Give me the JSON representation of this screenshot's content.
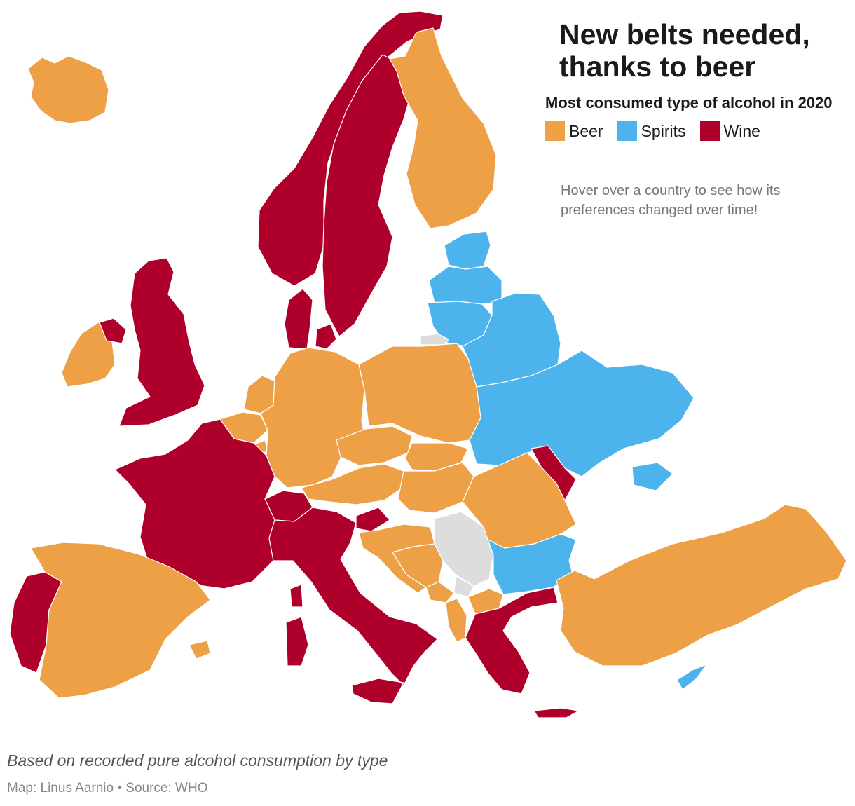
{
  "title": "New belts needed, thanks to beer",
  "legend": {
    "title": "Most consumed type of alcohol in 2020",
    "items": [
      {
        "key": "beer",
        "label": "Beer",
        "color": "#EDA045"
      },
      {
        "key": "spirits",
        "label": "Spirits",
        "color": "#4CB3EC"
      },
      {
        "key": "wine",
        "label": "Wine",
        "color": "#AE002A"
      }
    ]
  },
  "no_data_color": "#DDDDDD",
  "hint": "Hover over a country to see how its preferences changed over time!",
  "note": "Based on recorded pure alcohol consumption by type",
  "credit": "Map: Linus Aarnio • Source: WHO",
  "countries": [
    {
      "name": "Iceland",
      "type": "beer"
    },
    {
      "name": "Ireland",
      "type": "beer"
    },
    {
      "name": "United Kingdom",
      "type": "wine"
    },
    {
      "name": "Norway",
      "type": "wine"
    },
    {
      "name": "Sweden",
      "type": "wine"
    },
    {
      "name": "Denmark",
      "type": "wine"
    },
    {
      "name": "Finland",
      "type": "beer"
    },
    {
      "name": "Estonia",
      "type": "spirits"
    },
    {
      "name": "Latvia",
      "type": "spirits"
    },
    {
      "name": "Lithuania",
      "type": "spirits"
    },
    {
      "name": "Belarus",
      "type": "spirits"
    },
    {
      "name": "Russia (Kaliningrad)",
      "type": "none"
    },
    {
      "name": "Ukraine",
      "type": "spirits"
    },
    {
      "name": "Moldova",
      "type": "wine"
    },
    {
      "name": "Netherlands",
      "type": "beer"
    },
    {
      "name": "Belgium",
      "type": "beer"
    },
    {
      "name": "Luxembourg",
      "type": "beer"
    },
    {
      "name": "Germany",
      "type": "beer"
    },
    {
      "name": "Poland",
      "type": "beer"
    },
    {
      "name": "Czechia",
      "type": "beer"
    },
    {
      "name": "Slovakia",
      "type": "beer"
    },
    {
      "name": "Austria",
      "type": "beer"
    },
    {
      "name": "Hungary",
      "type": "beer"
    },
    {
      "name": "Switzerland",
      "type": "wine"
    },
    {
      "name": "France",
      "type": "wine"
    },
    {
      "name": "Portugal",
      "type": "wine"
    },
    {
      "name": "Spain",
      "type": "beer"
    },
    {
      "name": "Italy",
      "type": "wine"
    },
    {
      "name": "Slovenia",
      "type": "wine"
    },
    {
      "name": "Croatia",
      "type": "beer"
    },
    {
      "name": "Bosnia and Herzegovina",
      "type": "beer"
    },
    {
      "name": "Serbia",
      "type": "none"
    },
    {
      "name": "Kosovo",
      "type": "none"
    },
    {
      "name": "Montenegro",
      "type": "beer"
    },
    {
      "name": "Albania",
      "type": "beer"
    },
    {
      "name": "North Macedonia",
      "type": "beer"
    },
    {
      "name": "Romania",
      "type": "beer"
    },
    {
      "name": "Bulgaria",
      "type": "spirits"
    },
    {
      "name": "Greece",
      "type": "wine"
    },
    {
      "name": "Turkey",
      "type": "beer"
    },
    {
      "name": "Cyprus",
      "type": "spirits"
    }
  ]
}
